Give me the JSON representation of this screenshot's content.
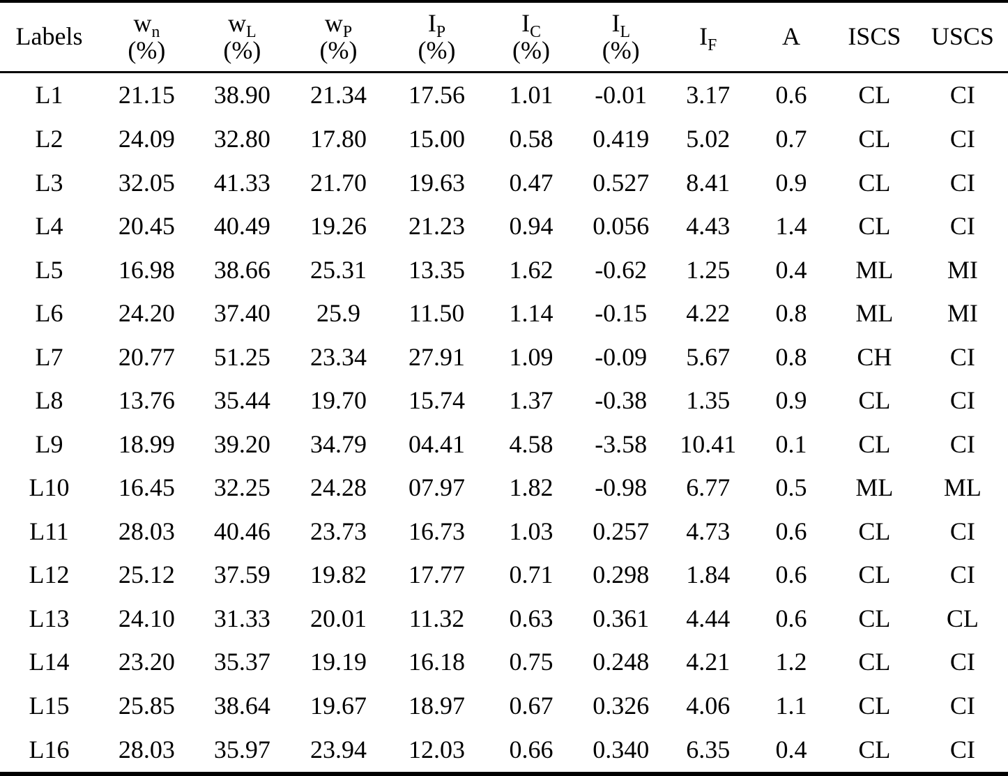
{
  "page": {
    "background_color": "#ffffff",
    "text_color": "#000000",
    "rule_color": "#000000"
  },
  "table": {
    "columns": [
      {
        "key": "labels",
        "base": "Labels",
        "sub": "",
        "unit": ""
      },
      {
        "key": "wn",
        "base": "w",
        "sub": "n",
        "unit": "(%)"
      },
      {
        "key": "wl",
        "base": "w",
        "sub": "L",
        "unit": "(%)"
      },
      {
        "key": "wp",
        "base": "w",
        "sub": "P",
        "unit": "(%)"
      },
      {
        "key": "ip",
        "base": "I",
        "sub": "P",
        "unit": "(%)"
      },
      {
        "key": "ic",
        "base": "I",
        "sub": "C",
        "unit": "(%)"
      },
      {
        "key": "il",
        "base": "I",
        "sub": "L",
        "unit": "(%)"
      },
      {
        "key": "if",
        "base": "I",
        "sub": "F",
        "unit": ""
      },
      {
        "key": "a",
        "base": "A",
        "sub": "",
        "unit": ""
      },
      {
        "key": "iscs",
        "base": "ISCS",
        "sub": "",
        "unit": ""
      },
      {
        "key": "uscs",
        "base": "USCS",
        "sub": "",
        "unit": ""
      }
    ],
    "rows": [
      {
        "label": "L1",
        "values": [
          "21.15",
          "38.90",
          "21.34",
          "17.56",
          "1.01",
          "-0.01",
          "3.17",
          "0.6",
          "CL",
          "CI"
        ]
      },
      {
        "label": "L2",
        "values": [
          "24.09",
          "32.80",
          "17.80",
          "15.00",
          "0.58",
          "0.419",
          "5.02",
          "0.7",
          "CL",
          "CI"
        ]
      },
      {
        "label": "L3",
        "values": [
          "32.05",
          "41.33",
          "21.70",
          "19.63",
          "0.47",
          "0.527",
          "8.41",
          "0.9",
          "CL",
          "CI"
        ]
      },
      {
        "label": "L4",
        "values": [
          "20.45",
          "40.49",
          "19.26",
          "21.23",
          "0.94",
          "0.056",
          "4.43",
          "1.4",
          "CL",
          "CI"
        ]
      },
      {
        "label": "L5",
        "values": [
          "16.98",
          "38.66",
          "25.31",
          "13.35",
          "1.62",
          "-0.62",
          "1.25",
          "0.4",
          "ML",
          "MI"
        ]
      },
      {
        "label": "L6",
        "values": [
          "24.20",
          "37.40",
          "25.9",
          "11.50",
          "1.14",
          "-0.15",
          "4.22",
          "0.8",
          "ML",
          "MI"
        ]
      },
      {
        "label": "L7",
        "values": [
          "20.77",
          "51.25",
          "23.34",
          "27.91",
          "1.09",
          "-0.09",
          "5.67",
          "0.8",
          "CH",
          "CI"
        ]
      },
      {
        "label": "L8",
        "values": [
          "13.76",
          "35.44",
          "19.70",
          "15.74",
          "1.37",
          "-0.38",
          "1.35",
          "0.9",
          "CL",
          "CI"
        ]
      },
      {
        "label": "L9",
        "values": [
          "18.99",
          "39.20",
          "34.79",
          "04.41",
          "4.58",
          "-3.58",
          "10.41",
          "0.1",
          "CL",
          "CI"
        ]
      },
      {
        "label": "L10",
        "values": [
          "16.45",
          "32.25",
          "24.28",
          "07.97",
          "1.82",
          "-0.98",
          "6.77",
          "0.5",
          "ML",
          "ML"
        ]
      },
      {
        "label": "L11",
        "values": [
          "28.03",
          "40.46",
          "23.73",
          "16.73",
          "1.03",
          "0.257",
          "4.73",
          "0.6",
          "CL",
          "CI"
        ]
      },
      {
        "label": "L12",
        "values": [
          "25.12",
          "37.59",
          "19.82",
          "17.77",
          "0.71",
          "0.298",
          "1.84",
          "0.6",
          "CL",
          "CI"
        ]
      },
      {
        "label": "L13",
        "values": [
          "24.10",
          "31.33",
          "20.01",
          "11.32",
          "0.63",
          "0.361",
          "4.44",
          "0.6",
          "CL",
          "CL"
        ]
      },
      {
        "label": "L14",
        "values": [
          "23.20",
          "35.37",
          "19.19",
          "16.18",
          "0.75",
          "0.248",
          "4.21",
          "1.2",
          "CL",
          "CI"
        ]
      },
      {
        "label": "L15",
        "values": [
          "25.85",
          "38.64",
          "19.67",
          "18.97",
          "0.67",
          "0.326",
          "4.06",
          "1.1",
          "CL",
          "CI"
        ]
      },
      {
        "label": "L16",
        "values": [
          "28.03",
          "35.97",
          "23.94",
          "12.03",
          "0.66",
          "0.340",
          "6.35",
          "0.4",
          "CL",
          "CI"
        ]
      }
    ],
    "column_widths_pct": [
      9.75,
      9.6,
      9.35,
      9.75,
      9.75,
      9.0,
      8.8,
      8.5,
      8.0,
      8.5,
      9.0
    ]
  }
}
